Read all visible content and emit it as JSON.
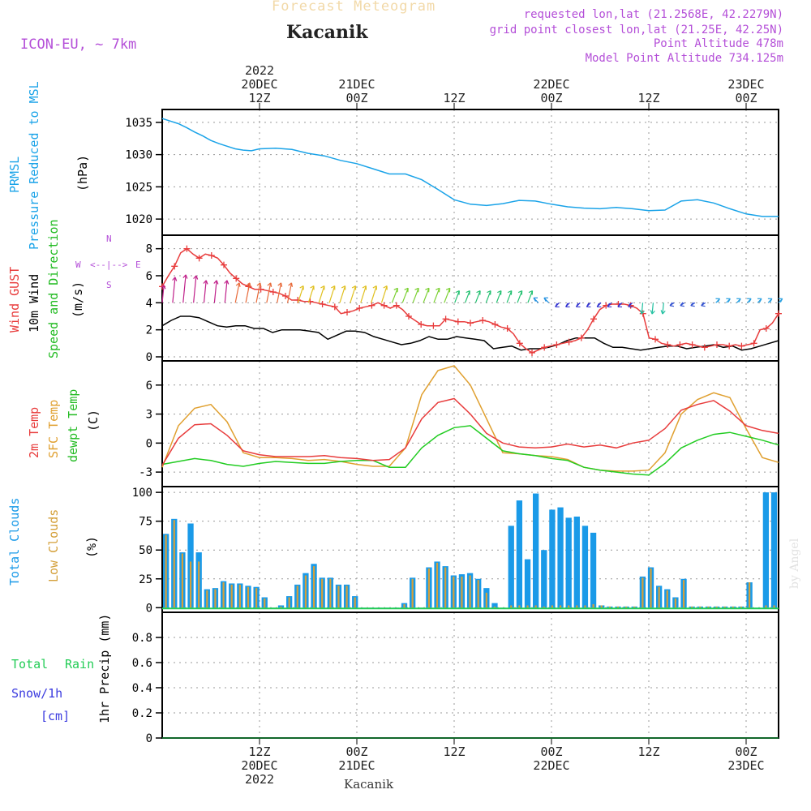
{
  "header": {
    "title": "Forecast Meteogram",
    "location": "Kacanik",
    "model": "ICON-EU, ~ 7km",
    "requested": "requested lon,lat (21.2568E, 42.2279N)",
    "grid_point": "grid point closest lon,lat (21.25E, 42.25N)",
    "point_altitude": "Point Altitude 478m",
    "model_altitude": "Model Point Altitude 734.125m"
  },
  "footer": {
    "location": "Kacanik",
    "watermark": "by Angel"
  },
  "colors": {
    "pressure": "#1aa3e8",
    "gust": "#e83c3c",
    "wind": "#000000",
    "temp2m": "#e83c3c",
    "sfc": "#e0a030",
    "dewpt": "#22cc22",
    "total_clouds": "#1a9ae8",
    "low_clouds": "#d4a03a",
    "rain": "#22cc55",
    "snow": "#3a3adf",
    "meta": "#b44fd8"
  },
  "time_axis": {
    "top_labels": [
      {
        "x": 12,
        "lines": [
          "2022",
          "20DEC",
          "12Z"
        ]
      },
      {
        "x": 24,
        "lines": [
          "21DEC",
          "00Z"
        ]
      },
      {
        "x": 36,
        "lines": [
          "12Z"
        ]
      },
      {
        "x": 48,
        "lines": [
          "22DEC",
          "00Z"
        ]
      },
      {
        "x": 60,
        "lines": [
          "12Z"
        ]
      },
      {
        "x": 72,
        "lines": [
          "23DEC",
          "00Z"
        ]
      }
    ],
    "bottom_labels": [
      {
        "x": 12,
        "lines": [
          "12Z",
          "20DEC",
          "2022"
        ]
      },
      {
        "x": 24,
        "lines": [
          "00Z",
          "21DEC"
        ]
      },
      {
        "x": 36,
        "lines": [
          "12Z"
        ]
      },
      {
        "x": 48,
        "lines": [
          "00Z",
          "22DEC"
        ]
      },
      {
        "x": 60,
        "lines": [
          "12Z"
        ]
      },
      {
        "x": 72,
        "lines": [
          "00Z",
          "23DEC"
        ]
      }
    ]
  },
  "panel_labels": {
    "pressure": {
      "l1": "PRMSL",
      "l2": "Pressure Reduced to MSL",
      "unit": "(hPa)"
    },
    "wind": {
      "gust": "Wind GUST",
      "wind10": "10m Wind",
      "dir": "Speed and Direction",
      "unit": "(m/s)",
      "n": "N",
      "s": "S",
      "w": "W",
      "e": "E",
      "arrows": "<--|-->"
    },
    "temp": {
      "t2m": "2m Temp",
      "sfc": "SFC Temp",
      "dew": "dewpt Temp",
      "unit": "(C)"
    },
    "clouds": {
      "total": "Total Clouds",
      "low": "Low Clouds",
      "unit": "(%)"
    },
    "precip": {
      "rain_a": "Total",
      "rain_b": "Rain",
      "snow": "Snow/1h",
      "cm": "[cm]",
      "unit": "1hr Precip (mm)"
    }
  },
  "chart_data": [
    {
      "type": "line",
      "panel": "pressure",
      "ylim": [
        1017.5,
        1037
      ],
      "yticks": [
        1020,
        1025,
        1030,
        1035
      ],
      "series": [
        {
          "name": "PRMSL",
          "x": [
            0,
            1,
            2,
            3,
            4,
            5,
            6,
            7,
            8,
            9,
            10,
            11,
            12,
            14,
            16,
            18,
            20,
            22,
            24,
            26,
            28,
            30,
            32,
            34,
            36,
            38,
            40,
            42,
            44,
            46,
            48,
            50,
            52,
            54,
            56,
            58,
            60,
            62,
            64,
            66,
            68,
            70,
            72,
            74,
            76
          ],
          "values": [
            1035.6,
            1035.2,
            1034.8,
            1034.2,
            1033.5,
            1032.9,
            1032.2,
            1031.7,
            1031.3,
            1030.9,
            1030.7,
            1030.6,
            1030.9,
            1031.0,
            1030.8,
            1030.2,
            1029.8,
            1029.1,
            1028.6,
            1027.8,
            1027.0,
            1027.0,
            1026.1,
            1024.6,
            1023.0,
            1022.3,
            1022.1,
            1022.4,
            1022.9,
            1022.8,
            1022.3,
            1021.9,
            1021.7,
            1021.6,
            1021.8,
            1021.6,
            1021.3,
            1021.4,
            1022.8,
            1023.0,
            1022.5,
            1021.6,
            1020.8,
            1020.4,
            1020.4
          ]
        }
      ]
    },
    {
      "type": "line",
      "panel": "wind",
      "ylim": [
        -0.3,
        9
      ],
      "yticks": [
        0,
        2,
        4,
        6,
        8
      ],
      "series": [
        {
          "name": "Wind GUST",
          "values": [
            5.2,
            6.0,
            6.7,
            7.7,
            8.0,
            7.6,
            7.3,
            7.6,
            7.5,
            7.3,
            6.8,
            6.2,
            5.8,
            5.4,
            5.2,
            5.0,
            5.0,
            4.9,
            4.8,
            4.7,
            4.5,
            4.2,
            4.2,
            4.1,
            4.1,
            4.0,
            3.9,
            3.8,
            3.7,
            3.2,
            3.3,
            3.4,
            3.6,
            3.7,
            3.8,
            4.0,
            3.8,
            3.6,
            3.8,
            3.5,
            3.0,
            2.7,
            2.4,
            2.3,
            2.3,
            2.3,
            2.8,
            2.7,
            2.6,
            2.6,
            2.5,
            2.6,
            2.7,
            2.6,
            2.4,
            2.2,
            2.1,
            1.7,
            1.0,
            0.6,
            0.3,
            0.5,
            0.7,
            0.8,
            0.9,
            1.0,
            1.1,
            1.2,
            1.4,
            2.0,
            2.8,
            3.5,
            3.8,
            3.9,
            3.9,
            3.9,
            3.8,
            3.6,
            3.2,
            1.4,
            1.3,
            1.0,
            0.9,
            0.8,
            0.9,
            1.0,
            0.9,
            0.8,
            0.7,
            0.8,
            0.9,
            0.9,
            0.8,
            0.9,
            0.8,
            0.9,
            1.0,
            2.0,
            2.1,
            2.5,
            3.2
          ]
        },
        {
          "name": "10m Wind",
          "values": [
            2.3,
            2.7,
            3.0,
            3.0,
            2.9,
            2.6,
            2.3,
            2.2,
            2.3,
            2.3,
            2.1,
            2.1,
            1.8,
            2.0,
            2.0,
            2.0,
            1.9,
            1.8,
            1.3,
            1.6,
            1.9,
            1.9,
            1.8,
            1.5,
            1.3,
            1.1,
            0.9,
            1.0,
            1.2,
            1.5,
            1.3,
            1.3,
            1.5,
            1.4,
            1.3,
            1.2,
            0.6,
            0.7,
            0.8,
            0.5,
            0.6,
            0.6,
            0.7,
            0.9,
            1.2,
            1.4,
            1.4,
            1.4,
            1.0,
            0.7,
            0.7,
            0.6,
            0.5,
            0.6,
            0.7,
            0.8,
            0.8,
            0.6,
            0.7,
            0.8,
            0.9,
            0.7,
            0.8,
            0.5,
            0.6,
            0.8,
            1.0,
            1.2
          ]
        }
      ]
    },
    {
      "type": "line",
      "panel": "temp",
      "ylim": [
        -4.5,
        8.5
      ],
      "yticks": [
        -3,
        0,
        3,
        6
      ],
      "series": [
        {
          "name": "2m Temp",
          "x": [
            0,
            2,
            4,
            6,
            8,
            10,
            12,
            14,
            16,
            18,
            20,
            22,
            24,
            26,
            28,
            30,
            32,
            34,
            36,
            38,
            40,
            42,
            44,
            46,
            48,
            50,
            52,
            54,
            56,
            58,
            60,
            62,
            64,
            66,
            68,
            70,
            72,
            74,
            76
          ],
          "values": [
            -2.3,
            0.5,
            1.9,
            2.0,
            0.8,
            -0.8,
            -1.2,
            -1.4,
            -1.4,
            -1.4,
            -1.3,
            -1.5,
            -1.6,
            -1.8,
            -1.7,
            -0.5,
            2.5,
            4.2,
            4.6,
            3.0,
            1.0,
            0.0,
            -0.4,
            -0.5,
            -0.4,
            -0.1,
            -0.4,
            -0.2,
            -0.5,
            0.0,
            0.3,
            1.5,
            3.4,
            4.0,
            4.4,
            3.3,
            1.8,
            1.3,
            1.0
          ]
        },
        {
          "name": "SFC Temp",
          "x": [
            0,
            2,
            4,
            6,
            8,
            10,
            12,
            14,
            16,
            18,
            20,
            22,
            24,
            26,
            28,
            30,
            32,
            34,
            36,
            38,
            40,
            42,
            44,
            46,
            48,
            50,
            52,
            54,
            56,
            58,
            60,
            62,
            64,
            66,
            68,
            70,
            72,
            74,
            76
          ],
          "values": [
            -2.5,
            1.8,
            3.6,
            4.0,
            2.2,
            -1.0,
            -1.5,
            -1.5,
            -1.6,
            -1.8,
            -1.7,
            -1.9,
            -2.2,
            -2.4,
            -2.4,
            -0.5,
            5.0,
            7.5,
            8.0,
            6.0,
            2.5,
            -1.0,
            -1.1,
            -1.3,
            -1.4,
            -1.7,
            -2.5,
            -2.8,
            -2.9,
            -2.9,
            -2.8,
            -1.0,
            3.0,
            4.5,
            5.2,
            4.7,
            1.5,
            -1.5,
            -2.0
          ]
        },
        {
          "name": "dewpt Temp",
          "x": [
            0,
            2,
            4,
            6,
            8,
            10,
            12,
            14,
            16,
            18,
            20,
            22,
            24,
            26,
            28,
            30,
            32,
            34,
            36,
            38,
            40,
            42,
            44,
            46,
            48,
            50,
            52,
            54,
            56,
            58,
            60,
            62,
            64,
            66,
            68,
            70,
            72,
            74,
            76
          ],
          "values": [
            -2.2,
            -1.9,
            -1.6,
            -1.8,
            -2.2,
            -2.4,
            -2.1,
            -1.9,
            -2.0,
            -2.1,
            -2.1,
            -1.9,
            -1.8,
            -1.8,
            -2.5,
            -2.5,
            -0.5,
            0.8,
            1.6,
            1.8,
            0.5,
            -0.8,
            -1.1,
            -1.3,
            -1.6,
            -1.8,
            -2.5,
            -2.8,
            -3.0,
            -3.2,
            -3.3,
            -2.1,
            -0.5,
            0.3,
            0.9,
            1.1,
            0.7,
            0.3,
            -0.2
          ]
        }
      ]
    },
    {
      "type": "bar",
      "panel": "clouds",
      "ylim": [
        -4,
        105
      ],
      "yticks": [
        0,
        25,
        50,
        75,
        100
      ],
      "series": [
        {
          "name": "Total Clouds",
          "values": [
            64,
            77,
            48,
            73,
            48,
            16,
            17,
            23,
            21,
            21,
            19,
            18,
            9,
            0,
            2,
            10,
            20,
            30,
            38,
            26,
            26,
            20,
            20,
            10,
            0,
            0,
            0,
            0,
            0,
            4,
            26,
            0,
            35,
            40,
            36,
            28,
            29,
            30,
            25,
            17,
            4,
            0,
            71,
            93,
            42,
            99,
            50,
            85,
            87,
            78,
            79,
            71,
            65,
            2,
            1,
            1,
            1,
            1,
            27,
            35,
            19,
            16,
            9,
            25,
            1,
            1,
            1,
            1,
            1,
            1,
            1,
            22,
            0,
            100,
            100
          ]
        },
        {
          "name": "Low Clouds",
          "values": [
            63,
            76,
            47,
            40,
            40,
            15,
            16,
            22,
            20,
            20,
            18,
            17,
            8,
            0,
            1,
            9,
            19,
            28,
            36,
            25,
            25,
            19,
            19,
            9,
            0,
            0,
            0,
            0,
            0,
            3,
            25,
            0,
            34,
            39,
            35,
            27,
            27,
            28,
            24,
            13,
            1,
            0,
            2,
            2,
            2,
            2,
            1,
            2,
            2,
            2,
            2,
            2,
            3,
            2,
            1,
            1,
            1,
            1,
            26,
            34,
            18,
            15,
            8,
            24,
            1,
            1,
            1,
            1,
            1,
            1,
            1,
            22,
            0,
            2,
            2
          ]
        }
      ]
    },
    {
      "type": "bar",
      "panel": "precip",
      "ylim": [
        0,
        1
      ],
      "yticks": [
        0,
        0.2,
        0.4,
        0.6,
        0.8
      ],
      "series": [
        {
          "name": "Total Rain",
          "values": []
        },
        {
          "name": "Snow/1h",
          "values": []
        }
      ]
    }
  ]
}
